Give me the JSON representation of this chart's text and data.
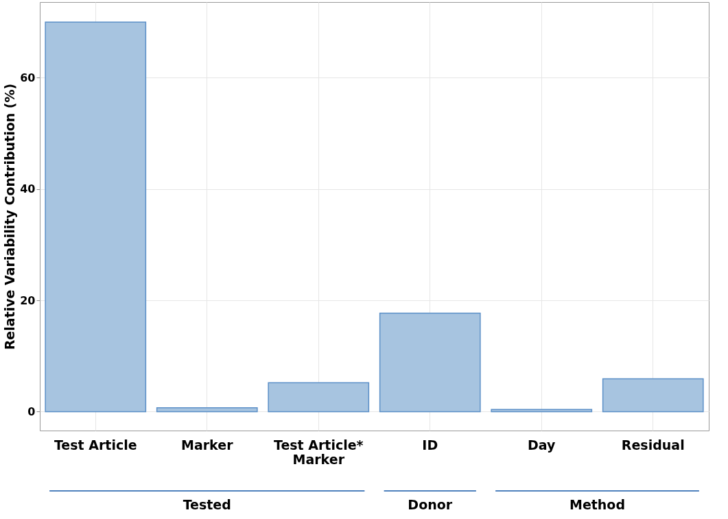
{
  "chart_data": {
    "type": "bar",
    "ylabel": "Relative Variability Contribution (%)",
    "categories": [
      "Test Article",
      "Marker",
      "Test Article*\nMarker",
      "ID",
      "Day",
      "Residual"
    ],
    "values": [
      70,
      0.7,
      5.2,
      17.7,
      0.4,
      5.9
    ],
    "color": "#a7c4e0",
    "ylim": [
      -3.4,
      73.6
    ],
    "yticks": [
      0,
      20,
      40,
      60
    ],
    "grid": true,
    "annotations": [
      "Tested",
      "Donor",
      "Method"
    ]
  }
}
